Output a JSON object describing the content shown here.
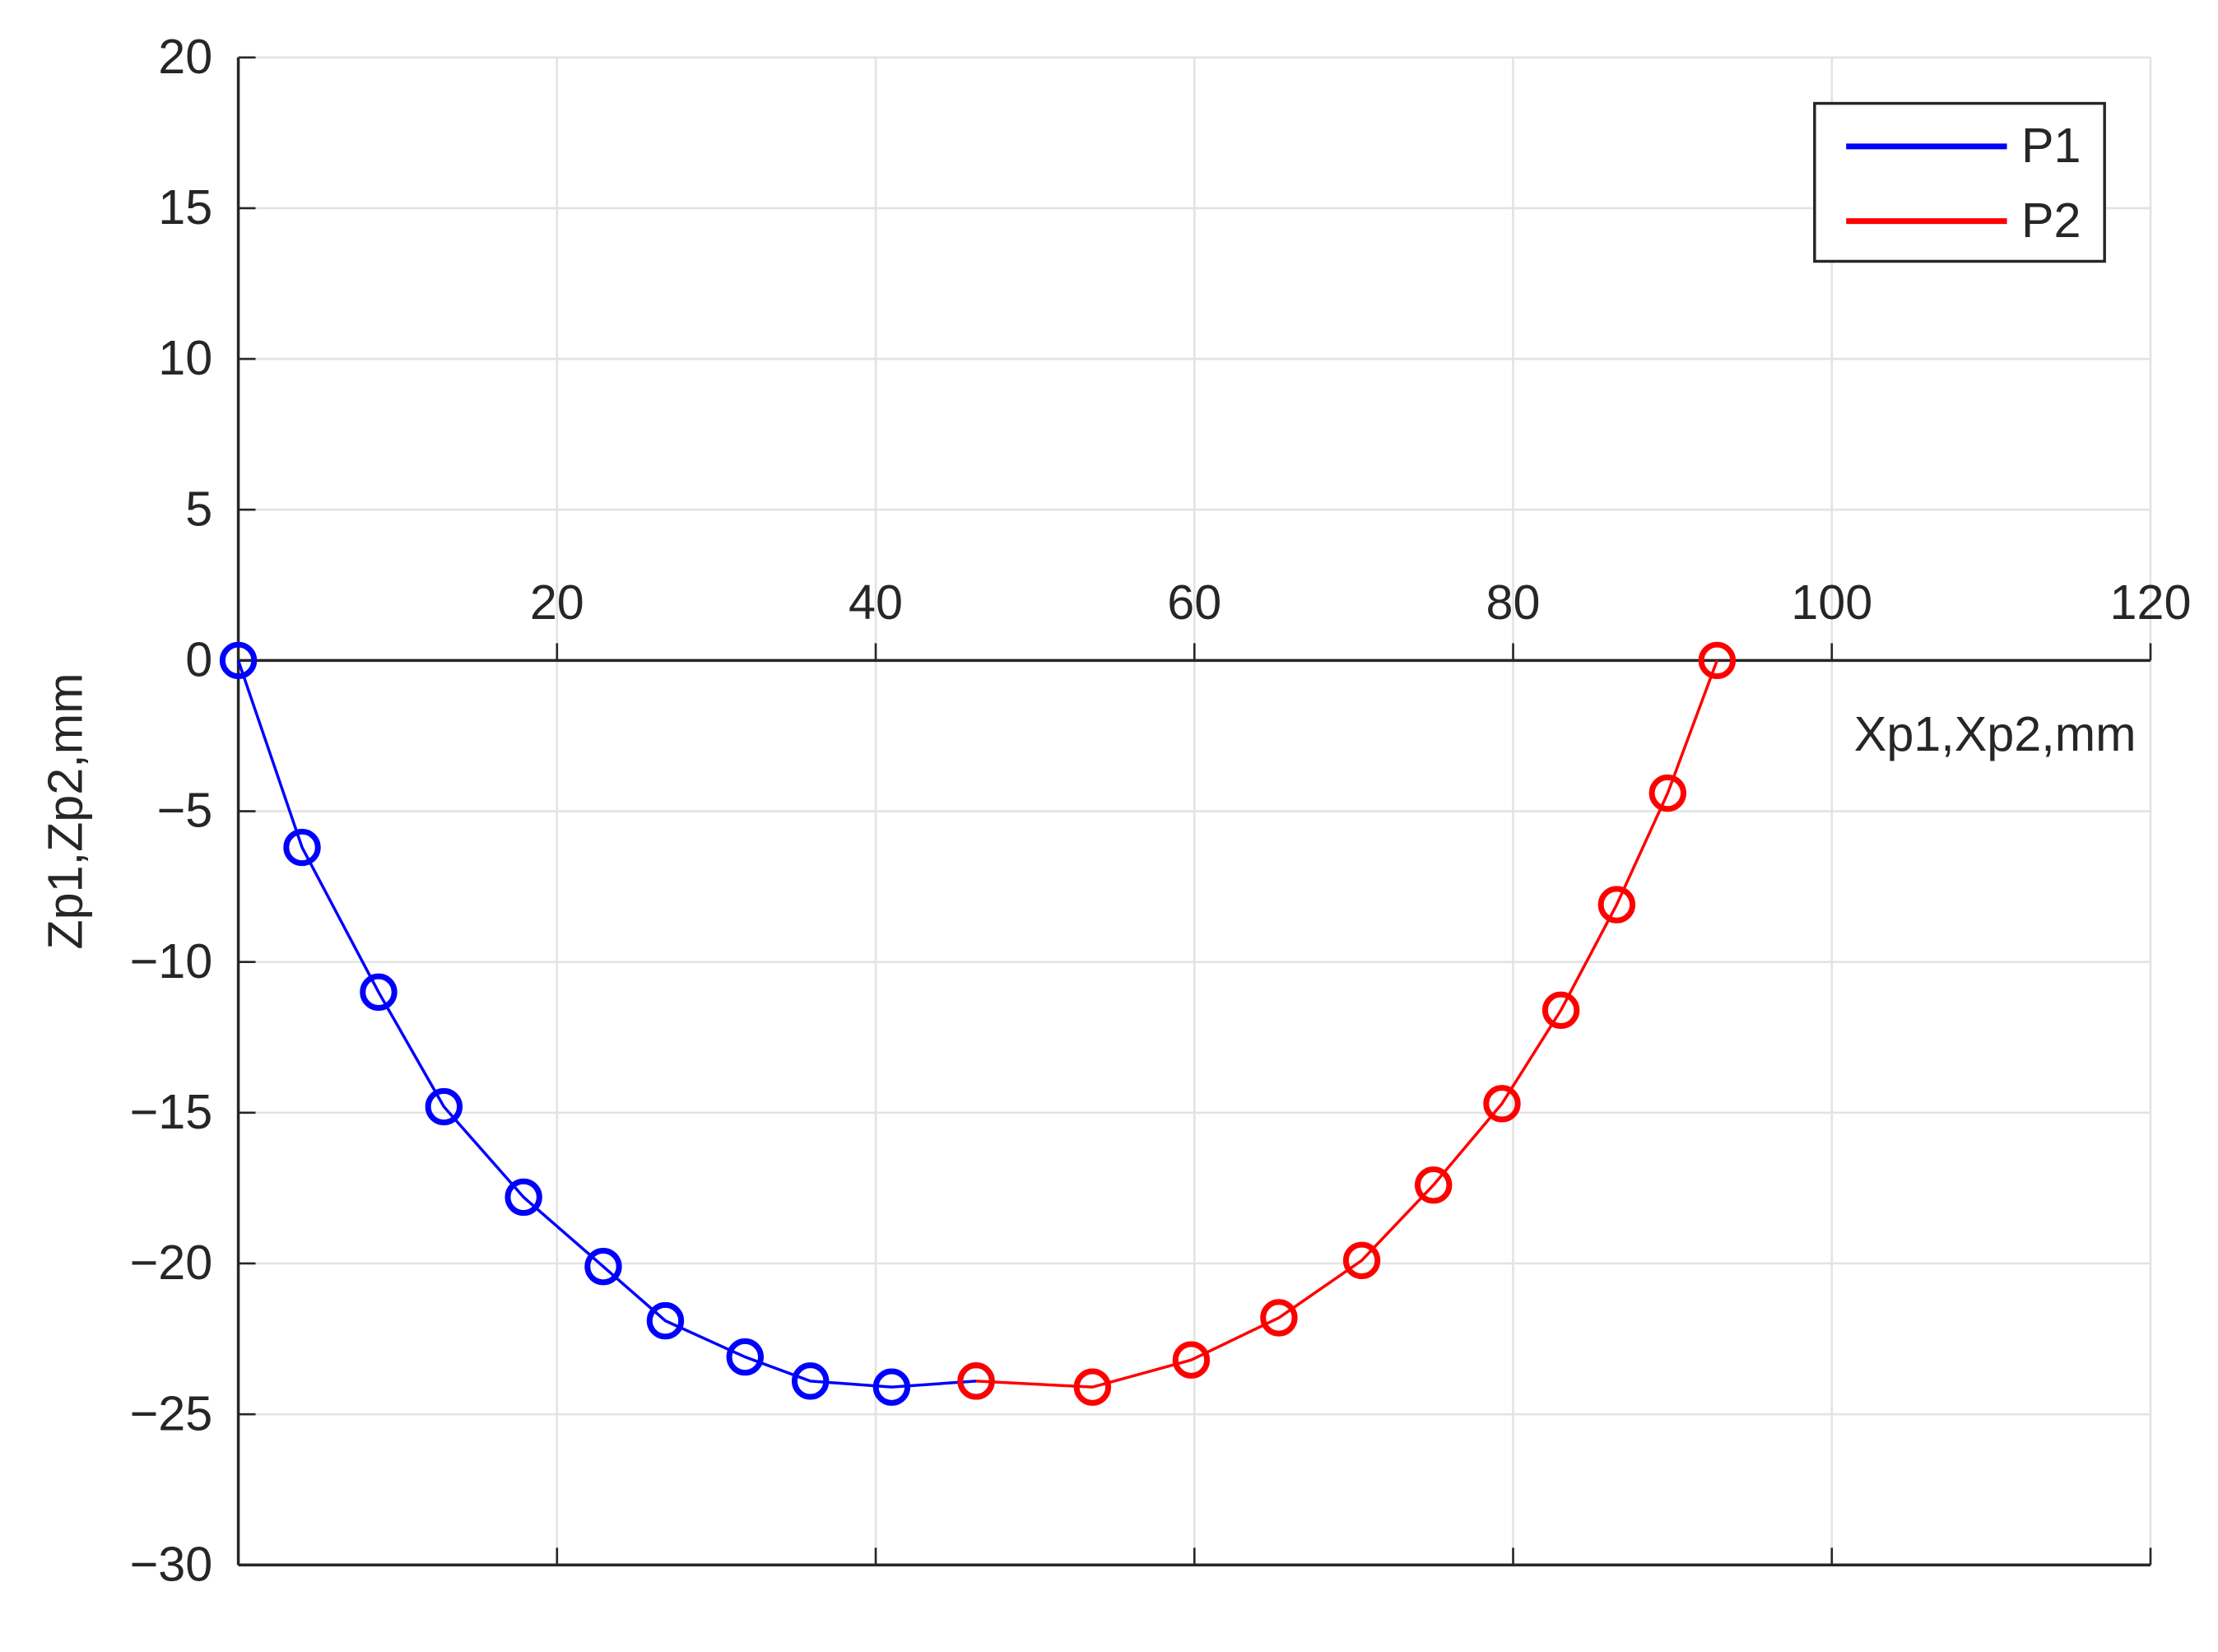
{
  "chart_data": {
    "type": "line",
    "xlabel": "Xp1,Xp2,mm",
    "ylabel": "Zp1,Zp2,mm",
    "series": [
      {
        "name": "P1",
        "color": "#0000ff",
        "x": [
          0,
          4.0,
          8.8,
          12.9,
          17.9,
          22.9,
          26.8,
          31.8,
          35.9,
          41.0,
          46.3
        ],
        "values": [
          0,
          -6.2,
          -11.0,
          -14.8,
          -17.8,
          -20.1,
          -21.9,
          -23.1,
          -23.9,
          -24.1,
          -23.9
        ]
      },
      {
        "name": "P2",
        "color": "#ff0000",
        "x": [
          46.3,
          53.6,
          59.8,
          65.3,
          70.5,
          75.0,
          79.3,
          83.0,
          86.5,
          89.7,
          92.8
        ],
        "values": [
          -23.9,
          -24.1,
          -23.2,
          -21.8,
          -19.9,
          -17.4,
          -14.7,
          -11.6,
          -8.1,
          -4.4,
          0
        ]
      }
    ],
    "xlim": [
      0,
      120
    ],
    "ylim": [
      -30,
      20
    ],
    "xticks": [
      20,
      40,
      60,
      80,
      100,
      120
    ],
    "yticks": [
      {
        "value": -30,
        "label": "−30"
      },
      {
        "value": -25,
        "label": "−25"
      },
      {
        "value": -20,
        "label": "−20"
      },
      {
        "value": -15,
        "label": "−15"
      },
      {
        "value": -10,
        "label": "−10"
      },
      {
        "value": -5,
        "label": "−5"
      },
      0,
      5,
      10,
      15,
      20
    ],
    "grid": true,
    "legend": "top-right"
  }
}
